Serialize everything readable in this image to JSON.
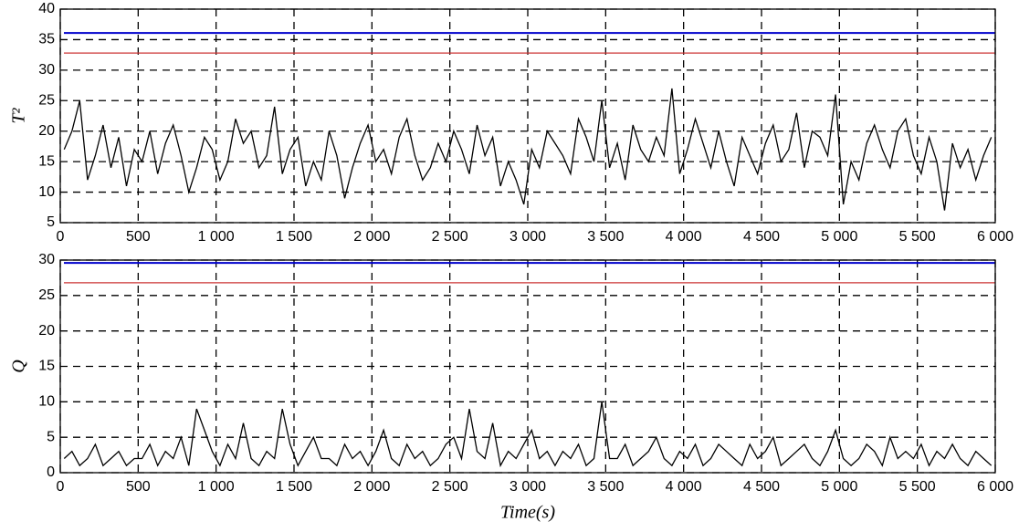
{
  "chart_data": [
    {
      "type": "line",
      "ylabel": "T²",
      "x": [
        25,
        75,
        125,
        175,
        225,
        275,
        325,
        375,
        425,
        475,
        525,
        575,
        625,
        675,
        725,
        775,
        825,
        875,
        925,
        975,
        1025,
        1075,
        1125,
        1175,
        1225,
        1275,
        1325,
        1375,
        1425,
        1475,
        1525,
        1575,
        1625,
        1675,
        1725,
        1775,
        1825,
        1875,
        1925,
        1975,
        2025,
        2075,
        2125,
        2175,
        2225,
        2275,
        2325,
        2375,
        2425,
        2475,
        2525,
        2575,
        2625,
        2675,
        2725,
        2775,
        2825,
        2875,
        2925,
        2975,
        3025,
        3075,
        3125,
        3175,
        3225,
        3275,
        3325,
        3375,
        3425,
        3475,
        3525,
        3575,
        3625,
        3675,
        3725,
        3775,
        3825,
        3875,
        3925,
        3975,
        4025,
        4075,
        4125,
        4175,
        4225,
        4275,
        4325,
        4375,
        4425,
        4475,
        4525,
        4575,
        4625,
        4675,
        4725,
        4775,
        4825,
        4875,
        4925,
        4975,
        5025,
        5075,
        5125,
        5175,
        5225,
        5275,
        5325,
        5375,
        5425,
        5475,
        5525,
        5575,
        5625,
        5675,
        5725,
        5775,
        5825,
        5875,
        5925,
        5975
      ],
      "series": [
        {
          "color": "#000000",
          "values": [
            17,
            20,
            25,
            12,
            16,
            21,
            14,
            19,
            11,
            17,
            15,
            20,
            13,
            18,
            21,
            16,
            10,
            14,
            19,
            17,
            12,
            15,
            22,
            18,
            20,
            14,
            16,
            24,
            13,
            17,
            19,
            11,
            15,
            12,
            20,
            16,
            9,
            14,
            18,
            21,
            15,
            17,
            13,
            19,
            22,
            16,
            12,
            14,
            18,
            15,
            20,
            17,
            13,
            21,
            16,
            19,
            11,
            15,
            12,
            8,
            17,
            14,
            20,
            18,
            16,
            13,
            22,
            19,
            15,
            25,
            14,
            18,
            12,
            21,
            17,
            15,
            19,
            16,
            27,
            13,
            17,
            22,
            18,
            14,
            20,
            15,
            11,
            19,
            16,
            13,
            18,
            21,
            15,
            17,
            23,
            14,
            20,
            19,
            16,
            26,
            8,
            15,
            12,
            18,
            21,
            17,
            14,
            20,
            22,
            16,
            13,
            19,
            15,
            7,
            18,
            14,
            17,
            12,
            16,
            19
          ]
        }
      ],
      "hlines": [
        {
          "value": 36.1,
          "color": "#0000cc"
        },
        {
          "value": 32.8,
          "color": "#cc3333"
        }
      ],
      "xlim": [
        0,
        6000
      ],
      "ylim": [
        5,
        40
      ],
      "xticks": [
        0,
        500,
        {
          "value": 1000,
          "label": "1 000"
        },
        {
          "value": 1500,
          "label": "1 500"
        },
        {
          "value": 2000,
          "label": "2 000"
        },
        {
          "value": 2500,
          "label": "2 500"
        },
        {
          "value": 3000,
          "label": "3 000"
        },
        {
          "value": 3500,
          "label": "3 500"
        },
        {
          "value": 4000,
          "label": "4 000"
        },
        {
          "value": 4500,
          "label": "4 500"
        },
        {
          "value": 5000,
          "label": "5 000"
        },
        {
          "value": 5500,
          "label": "5 500"
        },
        {
          "value": 6000,
          "label": "6 000"
        }
      ],
      "yticks": [
        5,
        10,
        15,
        20,
        25,
        30,
        35,
        40
      ],
      "grid": true
    },
    {
      "type": "line",
      "ylabel": "Q",
      "xlabel": "Time(s)",
      "x": [
        25,
        75,
        125,
        175,
        225,
        275,
        325,
        375,
        425,
        475,
        525,
        575,
        625,
        675,
        725,
        775,
        825,
        875,
        925,
        975,
        1025,
        1075,
        1125,
        1175,
        1225,
        1275,
        1325,
        1375,
        1425,
        1475,
        1525,
        1575,
        1625,
        1675,
        1725,
        1775,
        1825,
        1875,
        1925,
        1975,
        2025,
        2075,
        2125,
        2175,
        2225,
        2275,
        2325,
        2375,
        2425,
        2475,
        2525,
        2575,
        2625,
        2675,
        2725,
        2775,
        2825,
        2875,
        2925,
        2975,
        3025,
        3075,
        3125,
        3175,
        3225,
        3275,
        3325,
        3375,
        3425,
        3475,
        3525,
        3575,
        3625,
        3675,
        3725,
        3775,
        3825,
        3875,
        3925,
        3975,
        4025,
        4075,
        4125,
        4175,
        4225,
        4275,
        4325,
        4375,
        4425,
        4475,
        4525,
        4575,
        4625,
        4675,
        4725,
        4775,
        4825,
        4875,
        4925,
        4975,
        5025,
        5075,
        5125,
        5175,
        5225,
        5275,
        5325,
        5375,
        5425,
        5475,
        5525,
        5575,
        5625,
        5675,
        5725,
        5775,
        5825,
        5875,
        5925,
        5975
      ],
      "series": [
        {
          "color": "#000000",
          "values": [
            2,
            3,
            1,
            2,
            4,
            1,
            2,
            3,
            1,
            2,
            2,
            4,
            1,
            3,
            2,
            5,
            1,
            9,
            6,
            3,
            1,
            4,
            2,
            7,
            2,
            1,
            3,
            2,
            9,
            4,
            1,
            3,
            5,
            2,
            2,
            1,
            4,
            2,
            3,
            1,
            3,
            6,
            2,
            1,
            4,
            2,
            3,
            1,
            2,
            4,
            5,
            2,
            9,
            3,
            2,
            7,
            1,
            3,
            2,
            4,
            6,
            2,
            3,
            1,
            3,
            2,
            4,
            1,
            2,
            10,
            2,
            2,
            4,
            1,
            2,
            3,
            5,
            2,
            1,
            3,
            2,
            4,
            1,
            2,
            4,
            3,
            2,
            1,
            4,
            2,
            3,
            5,
            1,
            2,
            3,
            4,
            2,
            1,
            3,
            6,
            2,
            1,
            2,
            4,
            3,
            1,
            5,
            2,
            3,
            2,
            4,
            1,
            3,
            2,
            4,
            2,
            1,
            3,
            2,
            1
          ]
        }
      ],
      "hlines": [
        {
          "value": 29.6,
          "color": "#0000cc"
        },
        {
          "value": 26.8,
          "color": "#cc3333"
        }
      ],
      "xlim": [
        0,
        6000
      ],
      "ylim": [
        0,
        30
      ],
      "xticks": [
        0,
        500,
        {
          "value": 1000,
          "label": "1 000"
        },
        {
          "value": 1500,
          "label": "1 500"
        },
        {
          "value": 2000,
          "label": "2 000"
        },
        {
          "value": 2500,
          "label": "2 500"
        },
        {
          "value": 3000,
          "label": "3 000"
        },
        {
          "value": 3500,
          "label": "3 500"
        },
        {
          "value": 4000,
          "label": "4 000"
        },
        {
          "value": 4500,
          "label": "4 500"
        },
        {
          "value": 5000,
          "label": "5 000"
        },
        {
          "value": 5500,
          "label": "5 500"
        },
        {
          "value": 6000,
          "label": "6 000"
        }
      ],
      "yticks": [
        0,
        5,
        10,
        15,
        20,
        25,
        30
      ],
      "grid": true
    }
  ]
}
